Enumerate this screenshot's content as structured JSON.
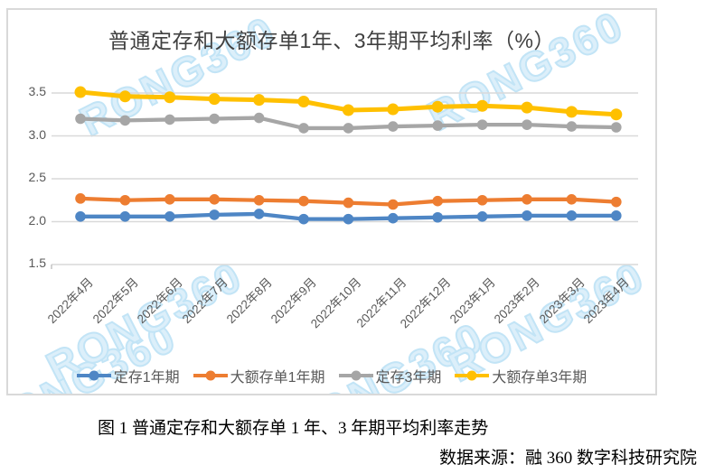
{
  "watermark": {
    "text": "RONG360"
  },
  "chart_data": {
    "type": "line",
    "title": "普通定存和大额存单1年、3年期平均利率（%）",
    "categories": [
      "2022年4月",
      "2022年5月",
      "2022年6月",
      "2022年7月",
      "2022年8月",
      "2022年9月",
      "2022年10月",
      "2022年11月",
      "2022年12月",
      "2023年1月",
      "2023年2月",
      "2023年3月",
      "2023年4月"
    ],
    "series": [
      {
        "name": "定存1年期",
        "key": "deposit-1y",
        "color": "#4E86C5",
        "values": [
          2.06,
          2.06,
          2.06,
          2.08,
          2.09,
          2.03,
          2.03,
          2.04,
          2.05,
          2.06,
          2.07,
          2.07,
          2.07
        ]
      },
      {
        "name": "大额存单1年期",
        "key": "cd-1y",
        "color": "#ED7D31",
        "values": [
          2.27,
          2.25,
          2.26,
          2.26,
          2.25,
          2.24,
          2.22,
          2.2,
          2.24,
          2.25,
          2.26,
          2.26,
          2.23
        ]
      },
      {
        "name": "定存3年期",
        "key": "deposit-3y",
        "color": "#A6A6A6",
        "values": [
          3.2,
          3.18,
          3.19,
          3.2,
          3.21,
          3.09,
          3.09,
          3.11,
          3.12,
          3.13,
          3.13,
          3.11,
          3.1
        ]
      },
      {
        "name": "大额存单3年期",
        "key": "cd-3y",
        "color": "#FFC000",
        "values": [
          3.51,
          3.46,
          3.45,
          3.43,
          3.42,
          3.4,
          3.3,
          3.31,
          3.34,
          3.35,
          3.33,
          3.28,
          3.25
        ]
      }
    ],
    "ylim": [
      1.5,
      3.5
    ],
    "ytick_labels": [
      "3.5",
      "3.0",
      "2.5",
      "2.0",
      "1.5"
    ],
    "ytick_values": [
      3.5,
      3.0,
      2.5,
      2.0,
      1.5
    ],
    "grid": true,
    "legend_position": "bottom"
  },
  "caption": {
    "figure_label": "图 1  普通定存和大额存单 1 年、3 年期平均利率走势",
    "source": "数据来源：融 360 数字科技研究院"
  },
  "colors": {
    "grid": "#D9D9D9",
    "frame": "#D9D9D9",
    "title_text": "#404040",
    "axis_text": "#595959",
    "watermark": "#C2E4F6"
  }
}
